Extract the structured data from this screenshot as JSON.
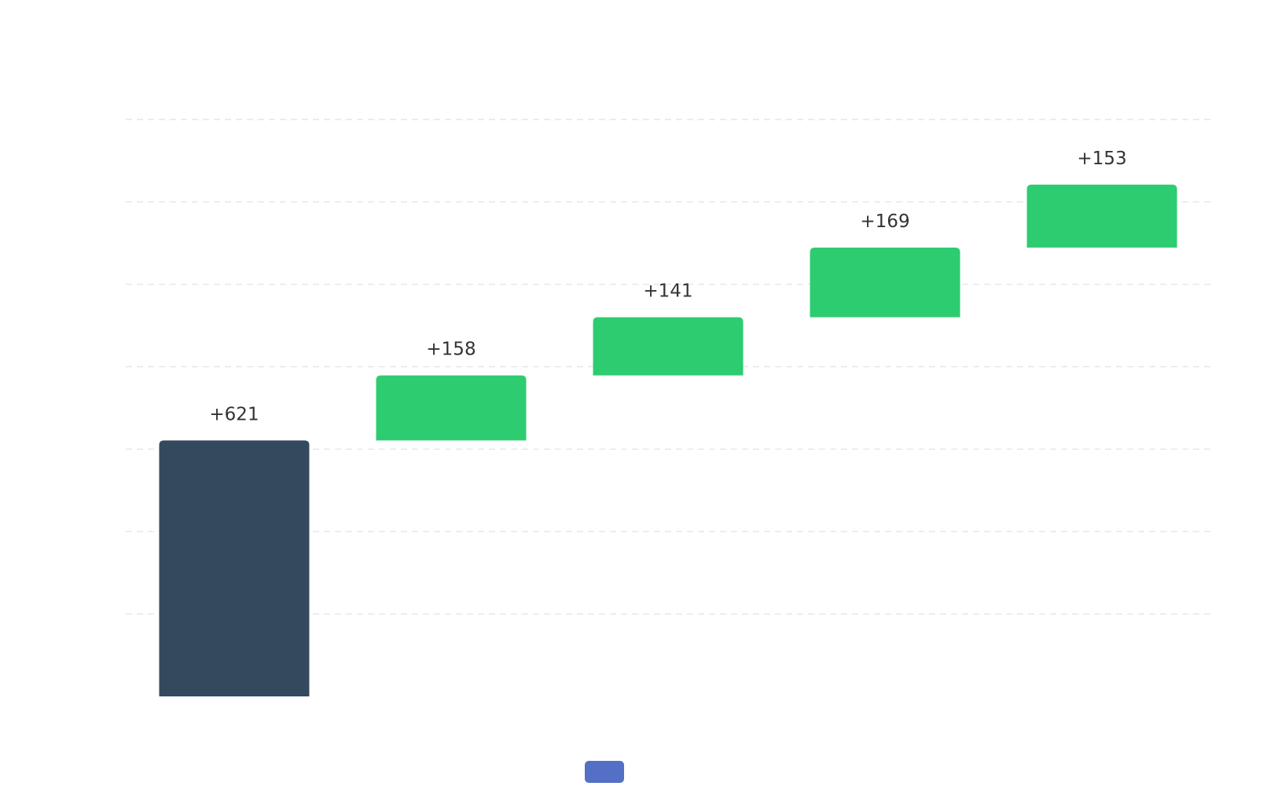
{
  "chart_data": {
    "type": "bar",
    "subtype": "waterfall",
    "title": "",
    "xlabel": "",
    "ylabel": "",
    "ylim": [
      0,
      1400
    ],
    "grid": true,
    "categories": [
      "",
      "",
      "",
      "",
      ""
    ],
    "values": [
      621,
      158,
      141,
      169,
      153
    ],
    "labels": [
      "+621",
      "+158",
      "+141",
      "+169",
      "+153"
    ],
    "bar_kinds": [
      "total",
      "increase",
      "increase",
      "increase",
      "increase"
    ],
    "colors": {
      "total": "#34495e",
      "increase": "#2ecc71",
      "legend": "#5470c6",
      "grid": "#e3e6ef",
      "label": "#333333"
    },
    "legend": {
      "position": "bottom-center",
      "entries": [
        ""
      ]
    }
  }
}
